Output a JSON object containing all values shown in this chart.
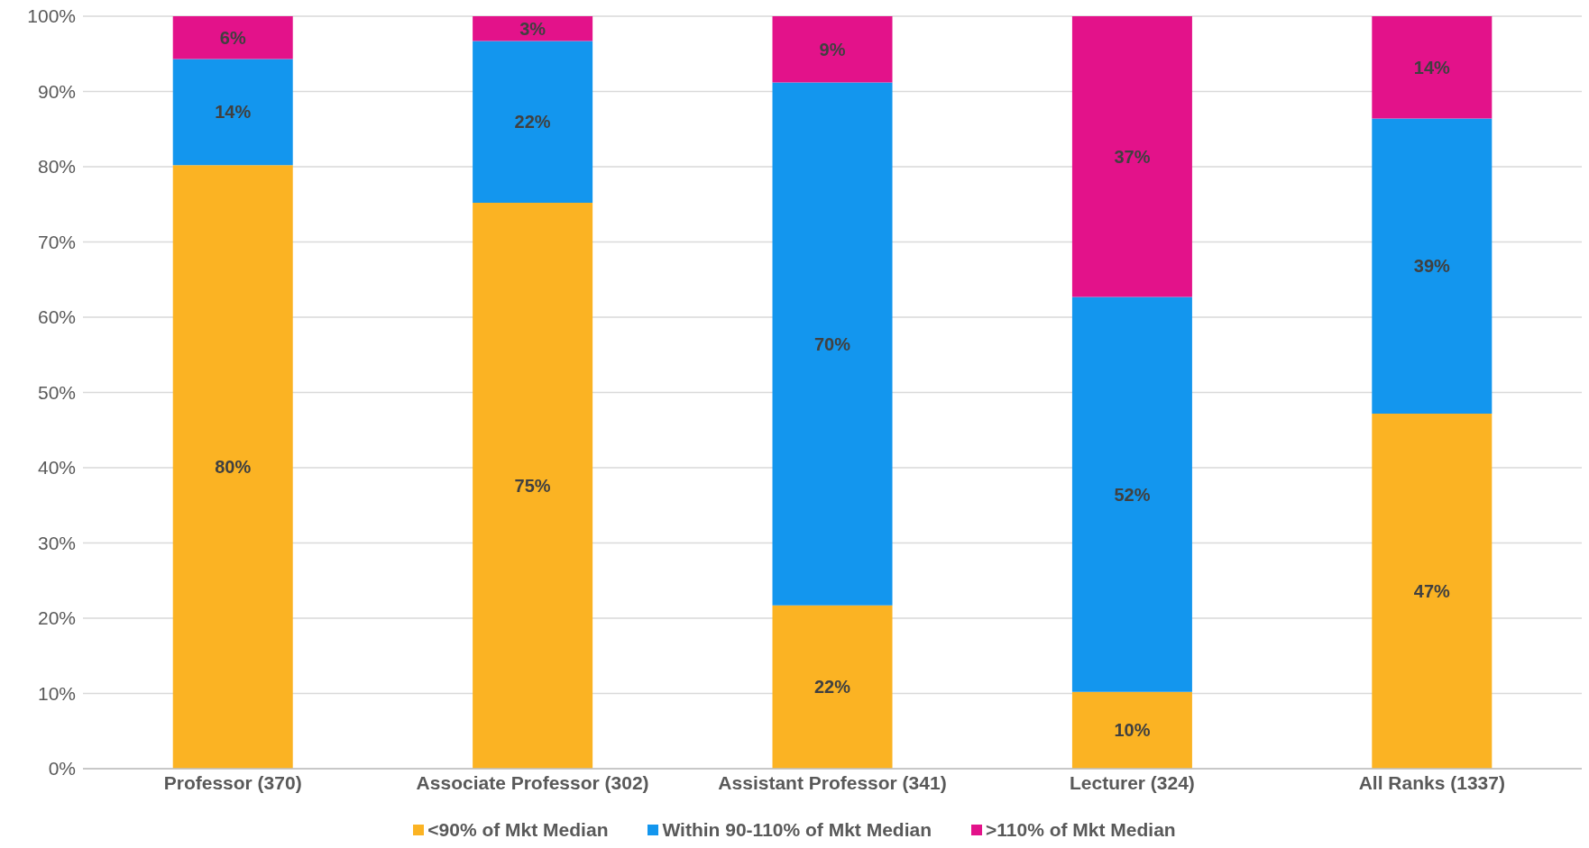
{
  "chart_data": {
    "type": "bar",
    "stacked": true,
    "categories": [
      "Professor (370)",
      "Associate Professor (302)",
      "Assistant Professor (341)",
      "Lecturer (324)",
      "All Ranks (1337)"
    ],
    "series": [
      {
        "name": "<90% of Mkt Median",
        "color": "#fbb323",
        "values": [
          80.2,
          75.2,
          21.7,
          10.2,
          47.2
        ],
        "value_labels": [
          "80%",
          "75%",
          "22%",
          "10%",
          "47%"
        ]
      },
      {
        "name": "Within 90-110% of Mkt Median",
        "color": "#1396ee",
        "values": [
          14.1,
          21.5,
          69.5,
          52.5,
          39.2
        ],
        "value_labels": [
          "14%",
          "22%",
          "70%",
          "52%",
          "39%"
        ]
      },
      {
        "name": ">110% of Mkt Median",
        "color": "#e3128a",
        "values": [
          5.7,
          3.3,
          8.8,
          37.3,
          13.6
        ],
        "value_labels": [
          "6%",
          "3%",
          "9%",
          "37%",
          "14%"
        ]
      }
    ],
    "ylim": [
      0,
      100
    ],
    "yticks": [
      {
        "value": 0,
        "label": "0%"
      },
      {
        "value": 10,
        "label": "10%"
      },
      {
        "value": 20,
        "label": "20%"
      },
      {
        "value": 30,
        "label": "30%"
      },
      {
        "value": 40,
        "label": "40%"
      },
      {
        "value": 50,
        "label": "50%"
      },
      {
        "value": 60,
        "label": "60%"
      },
      {
        "value": 70,
        "label": "70%"
      },
      {
        "value": 80,
        "label": "80%"
      },
      {
        "value": 90,
        "label": "90%"
      },
      {
        "value": 100,
        "label": "100%"
      }
    ],
    "grid": "y",
    "legend": "bottom"
  }
}
